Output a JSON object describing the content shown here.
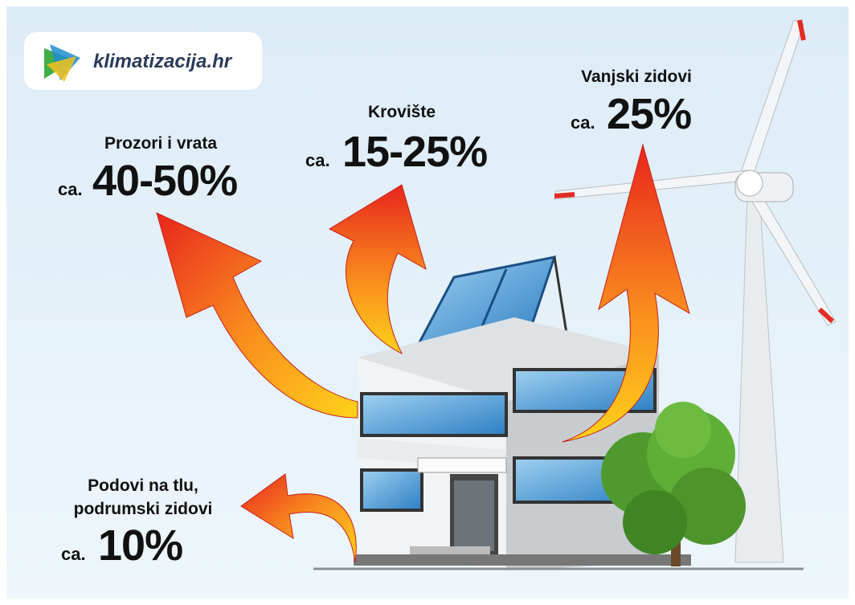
{
  "logo": {
    "text": "klimatizacija.hr"
  },
  "items": [
    {
      "label": "Prozori i vrata",
      "prefix": "ca.",
      "value": "40-50%"
    },
    {
      "label": "Krovište",
      "prefix": "ca.",
      "value": "15-25%"
    },
    {
      "label": "Vanjski zidovi",
      "prefix": "ca.",
      "value": "25%"
    },
    {
      "label": [
        "Podovi na tlu,",
        "podrumski zidovi"
      ],
      "prefix": "ca.",
      "value": "10%"
    }
  ]
}
